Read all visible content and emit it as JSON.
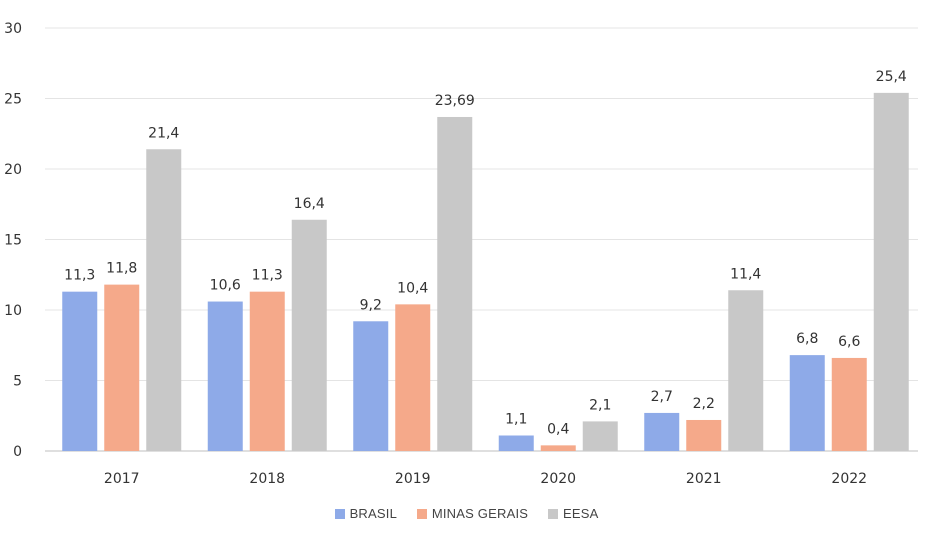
{
  "chart_data": {
    "type": "bar",
    "categories": [
      "2017",
      "2018",
      "2019",
      "2020",
      "2021",
      "2022"
    ],
    "series": [
      {
        "name": "BRASIL",
        "color": "#8eaae8",
        "values": [
          11.3,
          10.6,
          9.2,
          1.1,
          2.7,
          6.8
        ],
        "labels": [
          "11,3",
          "10,6",
          "9,2",
          "1,1",
          "2,7",
          "6,8"
        ]
      },
      {
        "name": "MINAS GERAIS",
        "color": "#f5a98a",
        "values": [
          11.8,
          11.3,
          10.4,
          0.4,
          2.2,
          6.6
        ],
        "labels": [
          "11,8",
          "11,3",
          "10,4",
          "0,4",
          "2,2",
          "6,6"
        ]
      },
      {
        "name": "EESA",
        "color": "#c8c8c8",
        "values": [
          21.4,
          16.4,
          23.69,
          2.1,
          11.4,
          25.4
        ],
        "labels": [
          "21,4",
          "16,4",
          "23,69",
          "2,1",
          "11,4",
          "25,4"
        ]
      }
    ],
    "yticks": [
      "0",
      "5",
      "10",
      "15",
      "20",
      "25",
      "30"
    ],
    "ylim": [
      0,
      30
    ],
    "grid": true,
    "legend_position": "bottom-center",
    "title": "",
    "xlabel": "",
    "ylabel": ""
  }
}
